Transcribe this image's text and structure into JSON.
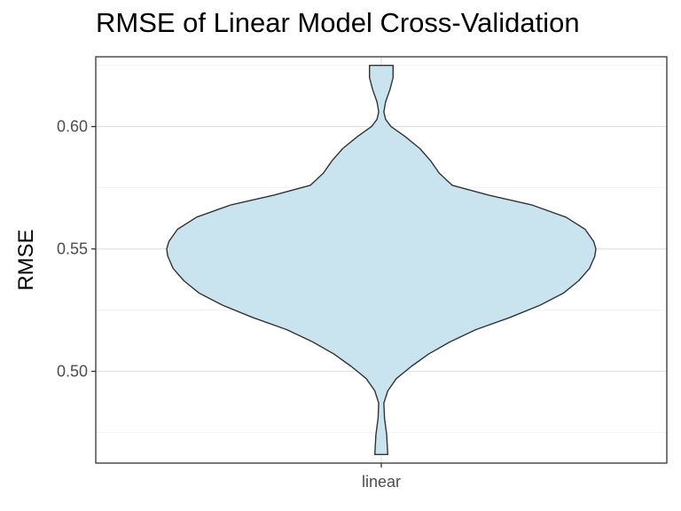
{
  "chart_data": {
    "type": "violin",
    "title": "RMSE of Linear Model Cross-Validation",
    "xlabel": "",
    "ylabel": "RMSE",
    "categories": [
      "linear"
    ],
    "ylim": [
      0.4625,
      0.6285
    ],
    "yticks": [
      0.5,
      0.55,
      0.6
    ],
    "ytick_labels": [
      "0.50",
      "0.55",
      "0.60"
    ],
    "grid": true,
    "fill_color": "#c6e3ee",
    "outline_color": "#333333",
    "series": [
      {
        "category": "linear",
        "min": 0.466,
        "max": 0.625,
        "density": [
          [
            0.466,
            0.03
          ],
          [
            0.474,
            0.025
          ],
          [
            0.481,
            0.015
          ],
          [
            0.487,
            0.012
          ],
          [
            0.492,
            0.03
          ],
          [
            0.497,
            0.07
          ],
          [
            0.502,
            0.14
          ],
          [
            0.507,
            0.22
          ],
          [
            0.512,
            0.32
          ],
          [
            0.517,
            0.44
          ],
          [
            0.522,
            0.6
          ],
          [
            0.527,
            0.74
          ],
          [
            0.532,
            0.85
          ],
          [
            0.537,
            0.92
          ],
          [
            0.542,
            0.97
          ],
          [
            0.547,
            0.995
          ],
          [
            0.55,
            1.0
          ],
          [
            0.553,
            0.99
          ],
          [
            0.558,
            0.95
          ],
          [
            0.563,
            0.86
          ],
          [
            0.568,
            0.7
          ],
          [
            0.572,
            0.5
          ],
          [
            0.576,
            0.33
          ],
          [
            0.581,
            0.27
          ],
          [
            0.586,
            0.23
          ],
          [
            0.591,
            0.18
          ],
          [
            0.596,
            0.11
          ],
          [
            0.6,
            0.045
          ],
          [
            0.603,
            0.02
          ],
          [
            0.606,
            0.012
          ],
          [
            0.61,
            0.02
          ],
          [
            0.615,
            0.04
          ],
          [
            0.62,
            0.055
          ],
          [
            0.625,
            0.055
          ]
        ]
      }
    ]
  }
}
